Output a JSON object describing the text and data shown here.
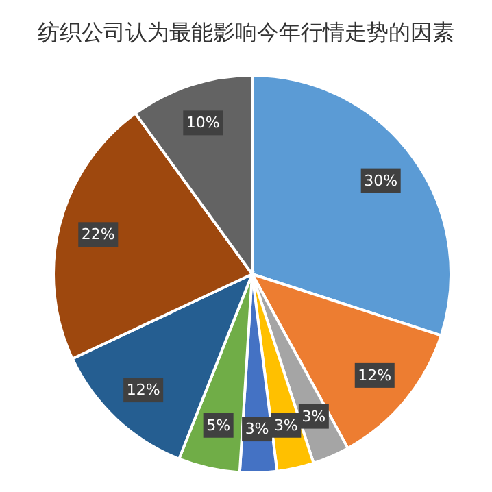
{
  "chart_data": {
    "type": "pie",
    "title": "纺织公司认为最能影响今年行情走势的因素",
    "categories": [
      null,
      null,
      null,
      null,
      null,
      null,
      null,
      null,
      null
    ],
    "values": [
      30,
      12,
      3,
      3,
      3,
      5,
      12,
      22,
      10
    ],
    "value_labels": [
      "30%",
      "12%",
      "3%",
      "3%",
      "3%",
      "5%",
      "12%",
      "22%",
      "10%"
    ],
    "colors": [
      "#5b9bd5",
      "#ed7d31",
      "#a5a5a5",
      "#ffc000",
      "#4472c4",
      "#70ad47",
      "#255e91",
      "#9e480e",
      "#636363"
    ],
    "legend": false
  }
}
